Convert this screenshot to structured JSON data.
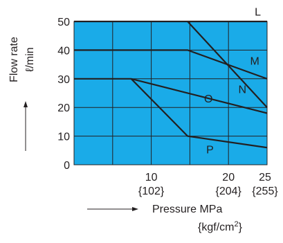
{
  "chart_data": {
    "type": "line",
    "title": "",
    "ylabel": "Flow rate",
    "yunit": "ℓ/min",
    "xlabel": "Pressure MPa",
    "xunit_prefix": "{kgf/cm",
    "xunit_sup": "2",
    "xunit_suffix": "}",
    "xlim": [
      0,
      25
    ],
    "ylim": [
      0,
      50
    ],
    "yticks": [
      0,
      10,
      20,
      30,
      40,
      50
    ],
    "xticks": [
      {
        "value": 10,
        "label": "10",
        "sublabel": "{102}"
      },
      {
        "value": 20,
        "label": "20",
        "sublabel": "{204}"
      },
      {
        "value": 25,
        "label": "25",
        "sublabel": "{255}"
      }
    ],
    "grid": true,
    "colors": {
      "plot_background": "#1aabe8",
      "lines": "#231f20",
      "text": "#231f20"
    },
    "series": [
      {
        "name": "L",
        "x": [
          0,
          25
        ],
        "y": [
          50,
          50
        ]
      },
      {
        "name": "M",
        "x": [
          0,
          14.7,
          25
        ],
        "y": [
          40,
          40,
          30
        ]
      },
      {
        "name": "N",
        "x": [
          14.7,
          25
        ],
        "y": [
          50,
          20
        ]
      },
      {
        "name": "O",
        "x": [
          0,
          7.4,
          25
        ],
        "y": [
          30,
          30,
          18
        ]
      },
      {
        "name": "P",
        "x": [
          7.4,
          14.7,
          25
        ],
        "y": [
          30,
          10,
          6
        ]
      }
    ],
    "series_labels": [
      {
        "name": "L",
        "x": 23.8,
        "y": 53.5
      },
      {
        "name": "M",
        "x": 23.4,
        "y": 36.4
      },
      {
        "name": "N",
        "x": 21.8,
        "y": 26.4
      },
      {
        "name": "O",
        "x": 17.4,
        "y": 23.2
      },
      {
        "name": "P",
        "x": 17.6,
        "y": 5.4
      }
    ]
  }
}
